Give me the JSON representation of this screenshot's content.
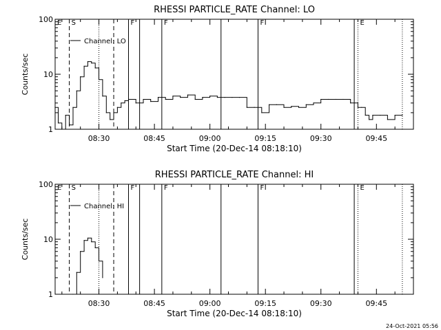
{
  "footer": {
    "timestamp": "24-Oct-2021 05:56"
  },
  "chart_data": [
    {
      "type": "line",
      "title": "RHESSI PARTICLE_RATE Channel: LO",
      "xlabel": "Start Time (20-Dec-14 08:18:10)",
      "ylabel": "Counts/sec",
      "yscale": "log",
      "ylim": [
        1,
        100
      ],
      "y_ticks": [
        "1",
        "10",
        "100"
      ],
      "xlim": [
        "08:18:10",
        "09:55"
      ],
      "x_ticks": [
        "08:30",
        "08:45",
        "09:00",
        "09:15",
        "09:30",
        "09:45"
      ],
      "legend": {
        "placement": "top-left",
        "label": "Channel: LO"
      },
      "event_markers": [
        {
          "label": "E",
          "time": "08:18:10",
          "style": "none"
        },
        {
          "label": "S",
          "time": "08:22",
          "style": "dashed"
        },
        {
          "label": "",
          "time": "08:34",
          "style": "dashed"
        },
        {
          "label": "",
          "time": "08:30",
          "style": "dotted"
        },
        {
          "label": "F",
          "time": "08:38",
          "style": "solid"
        },
        {
          "label": "",
          "time": "08:41",
          "style": "solid"
        },
        {
          "label": "F",
          "time": "08:47",
          "style": "solid"
        },
        {
          "label": "",
          "time": "09:03",
          "style": "solid"
        },
        {
          "label": "F",
          "time": "09:13",
          "style": "solid"
        },
        {
          "label": "",
          "time": "09:39",
          "style": "solid"
        },
        {
          "label": "E",
          "time": "09:40",
          "style": "dotted"
        },
        {
          "label": "",
          "time": "09:52",
          "style": "dotted"
        }
      ],
      "series": [
        {
          "name": "Channel: LO",
          "x": [
            "08:18:10",
            "08:19",
            "08:20",
            "08:21",
            "08:22",
            "08:23",
            "08:24",
            "08:25",
            "08:26",
            "08:27",
            "08:28",
            "08:29",
            "08:30",
            "08:31",
            "08:32",
            "08:33",
            "08:34",
            "08:35",
            "08:36",
            "08:37",
            "08:38",
            "08:40",
            "08:42",
            "08:44",
            "08:46",
            "08:48",
            "08:50",
            "08:52",
            "08:54",
            "08:56",
            "08:58",
            "09:00",
            "09:02",
            "09:04",
            "09:06",
            "09:08",
            "09:10",
            "09:12",
            "09:14",
            "09:16",
            "09:18",
            "09:20",
            "09:22",
            "09:24",
            "09:26",
            "09:28",
            "09:30",
            "09:32",
            "09:34",
            "09:36",
            "09:38",
            "09:40",
            "09:41",
            "09:42",
            "09:43",
            "09:44",
            "09:46",
            "09:48",
            "09:50",
            "09:52"
          ],
          "y": [
            2.5,
            1.3,
            1,
            1.8,
            1.2,
            2.5,
            5,
            9,
            14,
            17,
            16,
            13,
            8,
            4,
            2,
            1.5,
            2,
            2.5,
            3,
            3.3,
            3.5,
            3,
            3.5,
            3.2,
            3.8,
            3.5,
            4,
            3.8,
            4.2,
            3.5,
            3.8,
            4,
            3.8,
            3.8,
            3.8,
            3.8,
            2.5,
            2.5,
            2,
            2.8,
            2.8,
            2.5,
            2.6,
            2.5,
            2.8,
            3,
            3.5,
            3.5,
            3.5,
            3.5,
            3,
            2.5,
            2.5,
            1.8,
            1.5,
            1.8,
            1.8,
            1.5,
            1.8,
            1.8
          ]
        }
      ]
    },
    {
      "type": "line",
      "title": "RHESSI PARTICLE_RATE Channel: HI",
      "xlabel": "Start Time (20-Dec-14 08:18:10)",
      "ylabel": "Counts/sec",
      "yscale": "log",
      "ylim": [
        1,
        100
      ],
      "y_ticks": [
        "1",
        "10",
        "100"
      ],
      "xlim": [
        "08:18:10",
        "09:55"
      ],
      "x_ticks": [
        "08:30",
        "08:45",
        "09:00",
        "09:15",
        "09:30",
        "09:45"
      ],
      "legend": {
        "placement": "top-left",
        "label": "Channel: HI"
      },
      "event_markers": [
        {
          "label": "E",
          "time": "08:18:10",
          "style": "none"
        },
        {
          "label": "S",
          "time": "08:22",
          "style": "dashed"
        },
        {
          "label": "",
          "time": "08:34",
          "style": "dashed"
        },
        {
          "label": "",
          "time": "08:30",
          "style": "dotted"
        },
        {
          "label": "F",
          "time": "08:38",
          "style": "solid"
        },
        {
          "label": "",
          "time": "08:41",
          "style": "solid"
        },
        {
          "label": "F",
          "time": "08:47",
          "style": "solid"
        },
        {
          "label": "",
          "time": "09:03",
          "style": "solid"
        },
        {
          "label": "F",
          "time": "09:13",
          "style": "solid"
        },
        {
          "label": "",
          "time": "09:39",
          "style": "solid"
        },
        {
          "label": "E",
          "time": "09:40",
          "style": "dotted"
        },
        {
          "label": "",
          "time": "09:52",
          "style": "dotted"
        }
      ],
      "series": [
        {
          "name": "Channel: HI",
          "x": [
            "08:23",
            "08:24",
            "08:25",
            "08:26",
            "08:27",
            "08:28",
            "08:29",
            "08:30",
            "08:31"
          ],
          "y": [
            1,
            2.5,
            6,
            9.5,
            10.5,
            9,
            7,
            4,
            2
          ]
        }
      ]
    }
  ]
}
